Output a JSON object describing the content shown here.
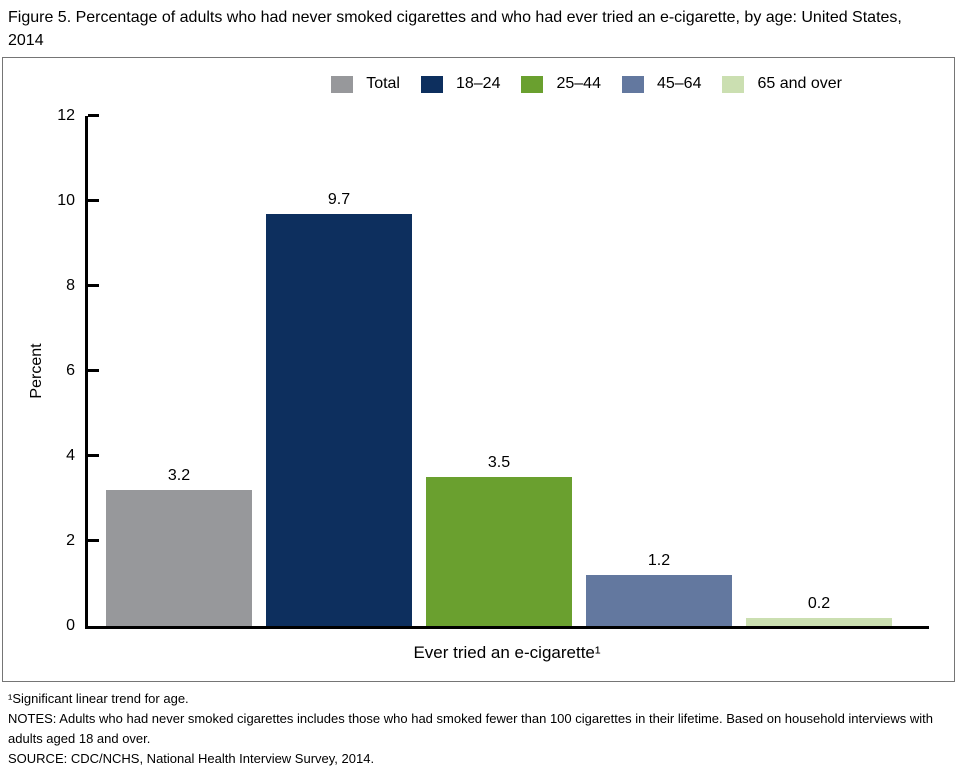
{
  "figure": {
    "title": "Figure 5. Percentage of adults who had never smoked cigarettes and who had ever tried an e-cigarette, by age: United States, 2014"
  },
  "chart_data": {
    "type": "bar",
    "title": "Figure 5. Percentage of adults who had never smoked cigarettes and who had ever tried an e-cigarette, by age: United States, 2014",
    "categories": [
      "Ever tried an e-cigarette¹"
    ],
    "series": [
      {
        "name": "Total",
        "color": "#97989b",
        "values": [
          3.2
        ]
      },
      {
        "name": "18–24",
        "color": "#0d2f5e",
        "values": [
          9.7
        ]
      },
      {
        "name": "25–44",
        "color": "#6aa02f",
        "values": [
          3.5
        ]
      },
      {
        "name": "45–64",
        "color": "#63789f",
        "values": [
          1.2
        ]
      },
      {
        "name": "65 and over",
        "color": "#cbdfb1",
        "values": [
          0.2
        ]
      }
    ],
    "xlabel": "Ever tried an e-cigarette¹",
    "ylabel": "Percent",
    "ylim": [
      0,
      12
    ],
    "yticks": [
      0,
      2,
      4,
      6,
      8,
      10,
      12
    ],
    "grid": false,
    "legend_position": "top",
    "value_label_format": "one-decimal"
  },
  "footnotes": {
    "lines": [
      "¹Significant linear trend for age.",
      "NOTES: Adults who had never smoked cigarettes includes those who had smoked fewer than 100 cigarettes in their lifetime. Based on household interviews with adults aged 18 and over.",
      "SOURCE: CDC/NCHS, National Health Interview Survey, 2014."
    ]
  },
  "colors": {
    "frame_border": "#757575",
    "axis": "#000000",
    "text": "#000000",
    "background": "#ffffff"
  }
}
